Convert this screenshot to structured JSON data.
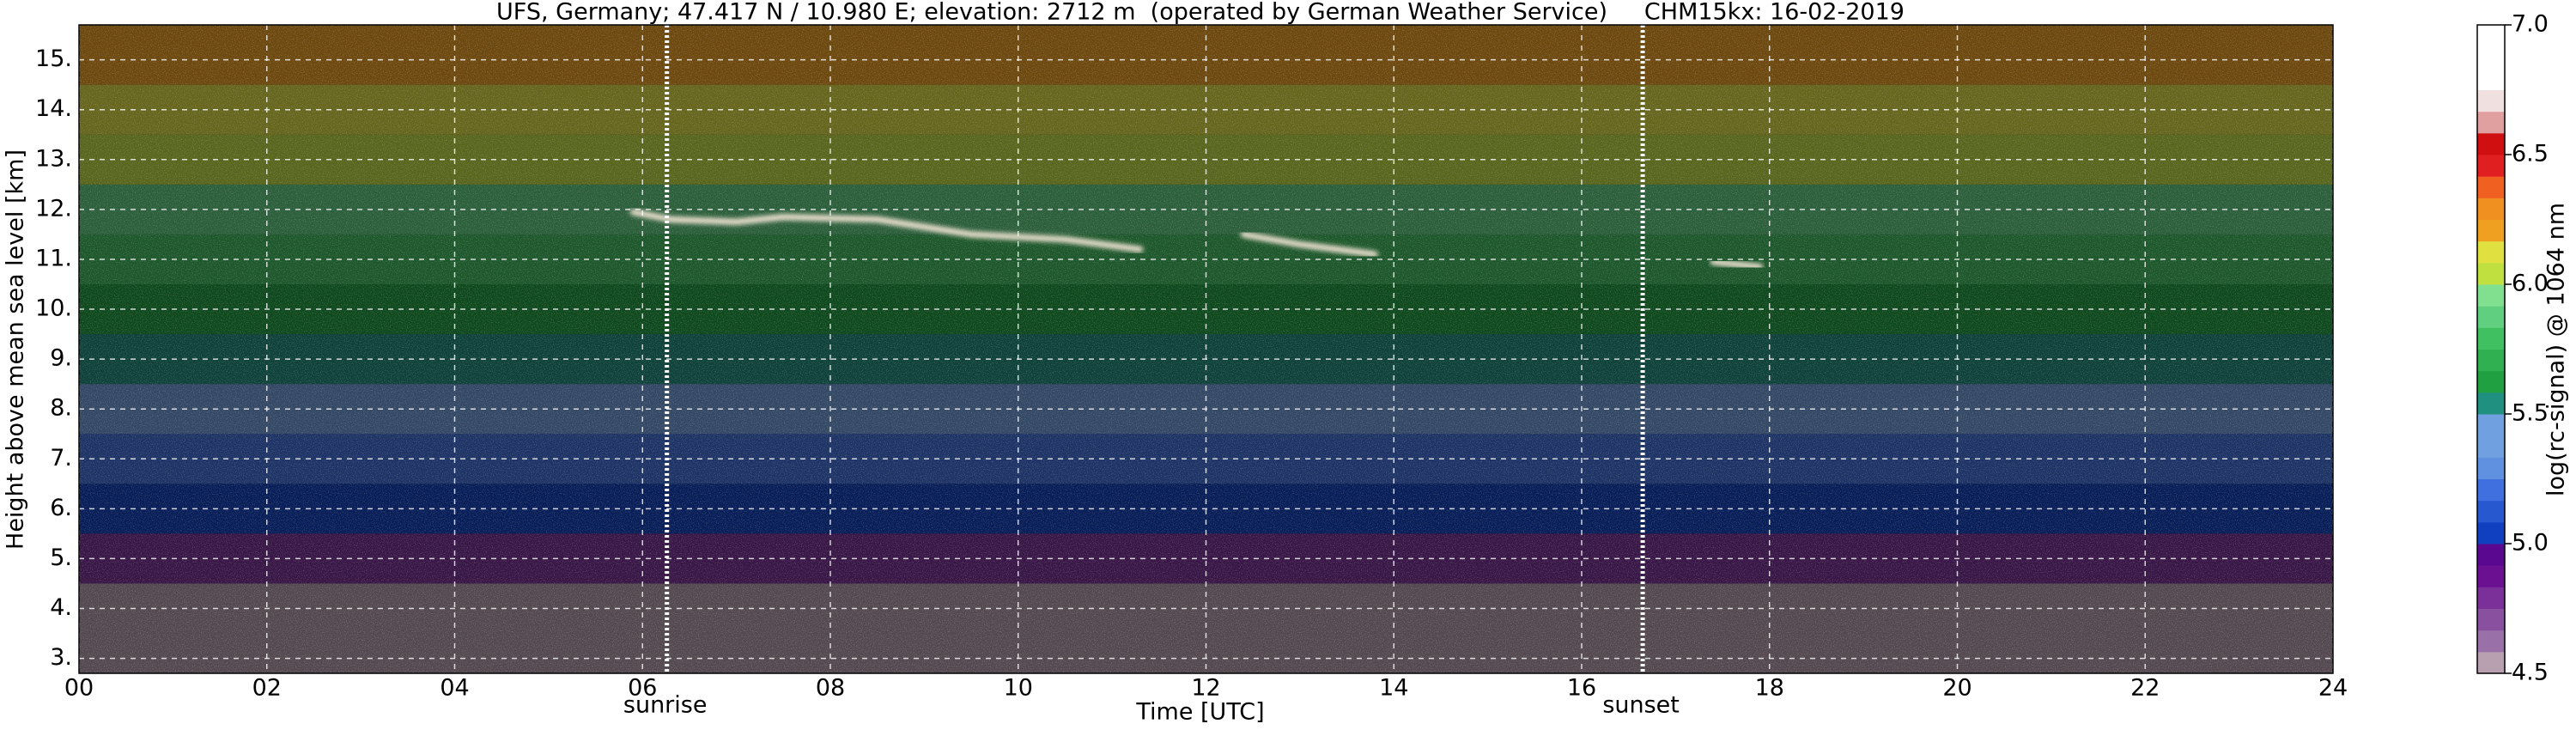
{
  "chart_data": {
    "type": "heatmap",
    "title": "UFS, Germany; 47.417 N / 10.980 E; elevation: 2712 m  (operated by German Weather Service)     CHM15kx: 16-02-2019",
    "x_label": "Time [UTC]",
    "y_label": "Height above mean sea level [km]",
    "xlim": [
      0,
      24
    ],
    "xticks": [
      {
        "value": 0,
        "label": "00"
      },
      {
        "value": 2,
        "label": "02"
      },
      {
        "value": 4,
        "label": "04"
      },
      {
        "value": 6,
        "label": "06"
      },
      {
        "value": 8,
        "label": "08"
      },
      10,
      12,
      14,
      16,
      18,
      20,
      22,
      24
    ],
    "ylim": [
      2.7,
      15.7
    ],
    "yticks": [
      {
        "value": 3,
        "label": "3."
      },
      {
        "value": 4,
        "label": "4."
      },
      {
        "value": 5,
        "label": "5."
      },
      {
        "value": 6,
        "label": "6."
      },
      {
        "value": 7,
        "label": "7."
      },
      {
        "value": 8,
        "label": "8."
      },
      {
        "value": 9,
        "label": "9."
      },
      {
        "value": 10,
        "label": "10."
      },
      {
        "value": 11,
        "label": "11."
      },
      {
        "value": 12,
        "label": "12."
      },
      {
        "value": 13,
        "label": "13."
      },
      {
        "value": 14,
        "label": "14."
      },
      {
        "value": 15,
        "label": "15."
      }
    ],
    "grid": true,
    "profile": {
      "heights": [
        3,
        4,
        5,
        6,
        7,
        8,
        9,
        10,
        11,
        12,
        13,
        14,
        15
      ],
      "values": [
        4.4,
        4.55,
        4.75,
        5.0,
        5.2,
        5.4,
        5.5,
        5.6,
        5.75,
        5.9,
        6.0,
        6.1,
        6.2
      ]
    },
    "clouds": {
      "x": [
        5.9,
        6.3,
        7.0,
        7.5,
        8.5,
        9.5,
        10.5,
        11.3,
        null,
        12.4,
        13.0,
        13.8,
        null,
        17.4,
        17.9
      ],
      "y": [
        11.95,
        11.8,
        11.75,
        11.85,
        11.8,
        11.5,
        11.4,
        11.2,
        null,
        11.5,
        11.3,
        11.1,
        null,
        10.95,
        10.85
      ]
    },
    "markers": [
      {
        "x": 6.26,
        "label": "sunrise"
      },
      {
        "x": 16.65,
        "label": "sunset"
      }
    ],
    "colorbar": {
      "label": "log(rc-signal) @ 1064 nm",
      "lim": [
        4.5,
        7.0
      ],
      "ticks": [
        4.5,
        {
          "value": 5,
          "label": "5.0"
        },
        5.5,
        {
          "value": 6,
          "label": "6.0"
        },
        6.5,
        {
          "value": 7,
          "label": "7.0"
        }
      ],
      "colors": [
        "#b8a0b0",
        "#9a70a8",
        "#8a50a0",
        "#7a3098",
        "#6a1090",
        "#5a0890",
        "#1040c0",
        "#2858d0",
        "#4070e0",
        "#6090e0",
        "#70a0e0",
        "#70a0e0",
        "#209080",
        "#20a040",
        "#30b050",
        "#40c060",
        "#60d080",
        "#80e090",
        "#c0e040",
        "#e0e040",
        "#f0a020",
        "#f09020",
        "#f06020",
        "#e02020",
        "#d01010",
        "#e0a0a0",
        "#f0e0e0",
        "#ffffff",
        "#ffffff",
        "#ffffff"
      ]
    }
  }
}
